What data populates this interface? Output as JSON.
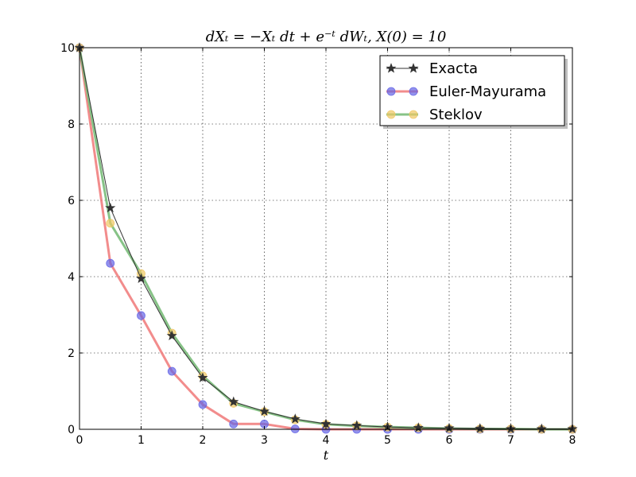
{
  "chart_data": {
    "type": "line",
    "title": "dXₜ = −Xₜ dt + e⁻ᵗ dWₜ,     X(0) = 10",
    "xlabel": "t",
    "ylabel": "",
    "xlim": [
      0,
      8
    ],
    "ylim": [
      0,
      10
    ],
    "xticks": [
      "0",
      "1",
      "2",
      "3",
      "4",
      "5",
      "6",
      "7",
      "8"
    ],
    "yticks": [
      "0",
      "2",
      "4",
      "6",
      "8",
      "10"
    ],
    "grid": true,
    "legend_position": "top-right",
    "series": [
      {
        "name": "Exacta",
        "color": "#333333",
        "marker": "star",
        "x": [
          0,
          0.5,
          1.0,
          1.5,
          2.0,
          2.5,
          3.0,
          3.5,
          4.0,
          4.5,
          5.0,
          5.5,
          6.0,
          6.5,
          7.0,
          7.5,
          8.0
        ],
        "y": [
          10,
          5.8,
          3.95,
          2.45,
          1.35,
          0.72,
          0.47,
          0.27,
          0.14,
          0.1,
          0.06,
          0.04,
          0.03,
          0.02,
          0.01,
          0.01,
          0.01
        ]
      },
      {
        "name": "Euler-Mayurama",
        "color": "#f07878",
        "marker_color": "#6464e6",
        "marker": "circle",
        "x": [
          0,
          0.5,
          1.0,
          1.5,
          2.0,
          2.5,
          3.0,
          3.5,
          4.0,
          4.5,
          5.0,
          5.5,
          6.0,
          6.5,
          7.0,
          7.5,
          8.0
        ],
        "y": [
          10,
          4.35,
          2.98,
          1.52,
          0.65,
          0.14,
          0.14,
          0.01,
          0.0,
          0.0,
          0.0,
          0.0,
          0.0,
          0.0,
          0.0,
          0.0,
          0.0
        ]
      },
      {
        "name": "Steklov",
        "color": "#72b872",
        "marker_color": "#f0c864",
        "marker": "circle",
        "x": [
          0,
          0.5,
          1.0,
          1.5,
          2.0,
          2.5,
          3.0,
          3.5,
          4.0,
          4.5,
          5.0,
          5.5,
          6.0,
          6.5,
          7.0,
          7.5,
          8.0
        ],
        "y": [
          10,
          5.4,
          4.08,
          2.52,
          1.4,
          0.68,
          0.46,
          0.25,
          0.13,
          0.09,
          0.06,
          0.04,
          0.02,
          0.01,
          0.01,
          0.0,
          0.0
        ]
      }
    ]
  }
}
